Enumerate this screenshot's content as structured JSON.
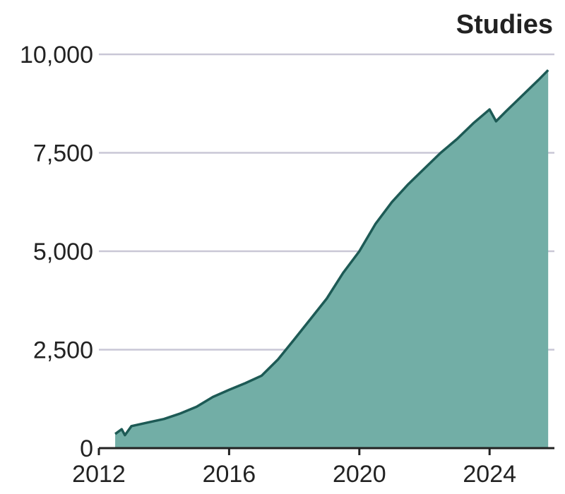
{
  "chart_data": {
    "type": "area",
    "title": "Studies",
    "xlabel": "",
    "ylabel": "",
    "x_ticks": [
      "2012",
      "2016",
      "2020",
      "2024"
    ],
    "y_ticks": [
      "0",
      "2,500",
      "5,000",
      "7,500",
      "10,000"
    ],
    "xlim": [
      2012,
      2025.8
    ],
    "ylim": [
      0,
      10000
    ],
    "grid": "horizontal",
    "colors": {
      "fill": "#72aea6",
      "line": "#1d5a55"
    },
    "series": [
      {
        "x": [
          2012.8,
          2012.5,
          2012.7,
          2013.0,
          2013.5,
          2014.0,
          2014.5,
          2015.0,
          2015.5,
          2016.0,
          2016.5,
          2017.0,
          2017.5,
          2018.0,
          2018.5,
          2019.0,
          2019.5,
          2020.0,
          2020.5,
          2021.0,
          2021.5,
          2022.0,
          2022.5,
          2023.0,
          2023.5,
          2024.0,
          2024.2,
          2024.5,
          2025.0,
          2025.5,
          2025.8
        ],
        "y": [
          330,
          360,
          480,
          560,
          650,
          740,
          880,
          1050,
          1300,
          1480,
          1650,
          1840,
          2250,
          2760,
          3280,
          3800,
          4450,
          5000,
          5700,
          6250,
          6700,
          7100,
          7500,
          7850,
          8250,
          8600,
          8300,
          8550,
          8950,
          9350,
          9600
        ]
      }
    ]
  }
}
